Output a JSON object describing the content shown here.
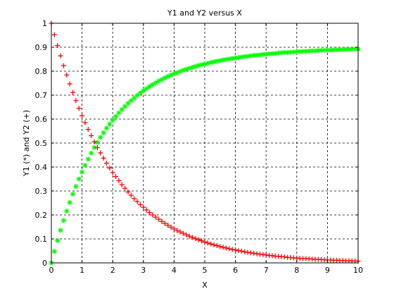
{
  "chart_data": {
    "type": "scatter",
    "title": "Y1 and Y2 versus X",
    "xlabel": "X",
    "ylabel": "Y1 (*) and Y2 (+)",
    "xlim": [
      0,
      10
    ],
    "ylim": [
      0,
      1
    ],
    "grid": true,
    "x_ticks": [
      0,
      1,
      2,
      3,
      4,
      5,
      6,
      7,
      8,
      9,
      10
    ],
    "y_ticks": [
      0,
      0.1,
      0.2,
      0.3,
      0.4,
      0.5,
      0.6,
      0.7,
      0.8,
      0.9,
      1
    ],
    "x_tick_labels": [
      "0",
      "1",
      "2",
      "3",
      "4",
      "5",
      "6",
      "7",
      "8",
      "9",
      "10"
    ],
    "y_tick_labels": [
      "0",
      "0.1",
      "0.2",
      "0.3",
      "0.4",
      "0.5",
      "0.6",
      "0.7",
      "0.8",
      "0.9",
      "1"
    ],
    "series": [
      {
        "marker": "*",
        "color": "#00ff00",
        "x": [
          0,
          0.1,
          0.2,
          0.3,
          0.4,
          0.5,
          0.6,
          0.7,
          0.8,
          0.9,
          1,
          1.1,
          1.2,
          1.3,
          1.4,
          1.5,
          1.6,
          1.7,
          1.8,
          1.9,
          2,
          2.1,
          2.2,
          2.3,
          2.4,
          2.5,
          2.6,
          2.7,
          2.8,
          2.9,
          3,
          3.1,
          3.2,
          3.3,
          3.4,
          3.5,
          3.6,
          3.7,
          3.8,
          3.9,
          4,
          4.1,
          4.2,
          4.3,
          4.4,
          4.5,
          4.6,
          4.7,
          4.8,
          4.9,
          5,
          5.1,
          5.2,
          5.3,
          5.4,
          5.5,
          5.6,
          5.7,
          5.8,
          5.9,
          6,
          6.1,
          6.2,
          6.3,
          6.4,
          6.5,
          6.6,
          6.7,
          6.8,
          6.9,
          7,
          7.1,
          7.2,
          7.3,
          7.4,
          7.5,
          7.6,
          7.7,
          7.8,
          7.9,
          8,
          8.1,
          8.2,
          8.3,
          8.4,
          8.5,
          8.6,
          8.7,
          8.8,
          8.9,
          9,
          9.1,
          9.2,
          9.3,
          9.4,
          9.5,
          9.6,
          9.7,
          9.8,
          9.9,
          10
        ],
        "y": [
          0,
          0.048,
          0.093,
          0.136,
          0.177,
          0.216,
          0.252,
          0.287,
          0.319,
          0.35,
          0.379,
          0.407,
          0.433,
          0.458,
          0.481,
          0.503,
          0.524,
          0.543,
          0.562,
          0.579,
          0.596,
          0.611,
          0.626,
          0.64,
          0.653,
          0.666,
          0.677,
          0.688,
          0.699,
          0.709,
          0.718,
          0.727,
          0.736,
          0.744,
          0.751,
          0.759,
          0.765,
          0.772,
          0.778,
          0.784,
          0.789,
          0.794,
          0.799,
          0.804,
          0.808,
          0.812,
          0.816,
          0.82,
          0.824,
          0.827,
          0.83,
          0.833,
          0.836,
          0.839,
          0.842,
          0.844,
          0.847,
          0.849,
          0.851,
          0.853,
          0.855,
          0.857,
          0.859,
          0.861,
          0.862,
          0.864,
          0.866,
          0.867,
          0.868,
          0.87,
          0.871,
          0.872,
          0.873,
          0.874,
          0.876,
          0.877,
          0.878,
          0.878,
          0.879,
          0.88,
          0.881,
          0.882,
          0.883,
          0.883,
          0.884,
          0.885,
          0.885,
          0.886,
          0.887,
          0.887,
          0.888,
          0.888,
          0.889,
          0.889,
          0.89,
          0.89,
          0.891,
          0.891,
          0.892,
          0.892,
          0.892
        ]
      },
      {
        "marker": "+",
        "color": "#ff0000",
        "x": [
          0,
          0.1,
          0.2,
          0.3,
          0.4,
          0.5,
          0.6,
          0.7,
          0.8,
          0.9,
          1,
          1.1,
          1.2,
          1.3,
          1.4,
          1.5,
          1.6,
          1.7,
          1.8,
          1.9,
          2,
          2.1,
          2.2,
          2.3,
          2.4,
          2.5,
          2.6,
          2.7,
          2.8,
          2.9,
          3,
          3.1,
          3.2,
          3.3,
          3.4,
          3.5,
          3.6,
          3.7,
          3.8,
          3.9,
          4,
          4.1,
          4.2,
          4.3,
          4.4,
          4.5,
          4.6,
          4.7,
          4.8,
          4.9,
          5,
          5.1,
          5.2,
          5.3,
          5.4,
          5.5,
          5.6,
          5.7,
          5.8,
          5.9,
          6,
          6.1,
          6.2,
          6.3,
          6.4,
          6.5,
          6.6,
          6.7,
          6.8,
          6.9,
          7,
          7.1,
          7.2,
          7.3,
          7.4,
          7.5,
          7.6,
          7.7,
          7.8,
          7.9,
          8,
          8.1,
          8.2,
          8.3,
          8.4,
          8.5,
          8.6,
          8.7,
          8.8,
          8.9,
          9,
          9.1,
          9.2,
          9.3,
          9.4,
          9.5,
          9.6,
          9.7,
          9.8,
          9.9,
          10
        ],
        "y": [
          1,
          0.952,
          0.907,
          0.864,
          0.823,
          0.784,
          0.747,
          0.711,
          0.677,
          0.645,
          0.614,
          0.585,
          0.557,
          0.531,
          0.505,
          0.481,
          0.459,
          0.437,
          0.416,
          0.396,
          0.377,
          0.36,
          0.343,
          0.326,
          0.311,
          0.296,
          0.282,
          0.268,
          0.256,
          0.243,
          0.232,
          0.221,
          0.21,
          0.2,
          0.191,
          0.182,
          0.173,
          0.165,
          0.157,
          0.149,
          0.142,
          0.135,
          0.129,
          0.123,
          0.117,
          0.111,
          0.106,
          0.101,
          0.096,
          0.092,
          0.087,
          0.083,
          0.079,
          0.075,
          0.072,
          0.068,
          0.065,
          0.062,
          0.059,
          0.056,
          0.054,
          0.051,
          0.049,
          0.046,
          0.044,
          0.042,
          0.04,
          0.038,
          0.036,
          0.035,
          0.033,
          0.031,
          0.03,
          0.028,
          0.027,
          0.026,
          0.025,
          0.023,
          0.022,
          0.021,
          0.02,
          0.019,
          0.018,
          0.018,
          0.017,
          0.016,
          0.015,
          0.015,
          0.014,
          0.013,
          0.012,
          0.012,
          0.011,
          0.011,
          0.01,
          0.01,
          0.009,
          0.009,
          0.008,
          0.008,
          0.007
        ]
      }
    ]
  }
}
